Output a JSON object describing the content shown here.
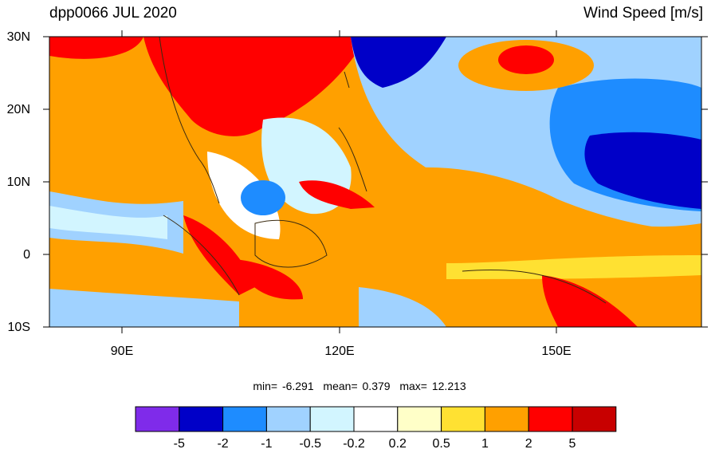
{
  "title": {
    "left": "dpp0066 JUL 2020",
    "right": "Wind Speed [m/s]"
  },
  "axes": {
    "lat_labels": [
      "30N",
      "20N",
      "10N",
      "0",
      "10S"
    ],
    "lon_labels": [
      "90E",
      "120E",
      "150E"
    ]
  },
  "stats": {
    "min_label": "min=",
    "min": "-6.291",
    "mean_label": "mean=",
    "mean": "0.379",
    "max_label": "max=",
    "max": "12.213"
  },
  "colorbar": {
    "levels": [
      "-5",
      "-2",
      "-1",
      "-0.5",
      "-0.2",
      "0.2",
      "0.5",
      "1",
      "2",
      "5"
    ],
    "colors": [
      "#7f2bea",
      "#0000c8",
      "#1e8cff",
      "#a0d2ff",
      "#d2f5ff",
      "#ffffff",
      "#ffffc8",
      "#ffe132",
      "#ffa000",
      "#ff0000",
      "#c80000"
    ]
  }
}
